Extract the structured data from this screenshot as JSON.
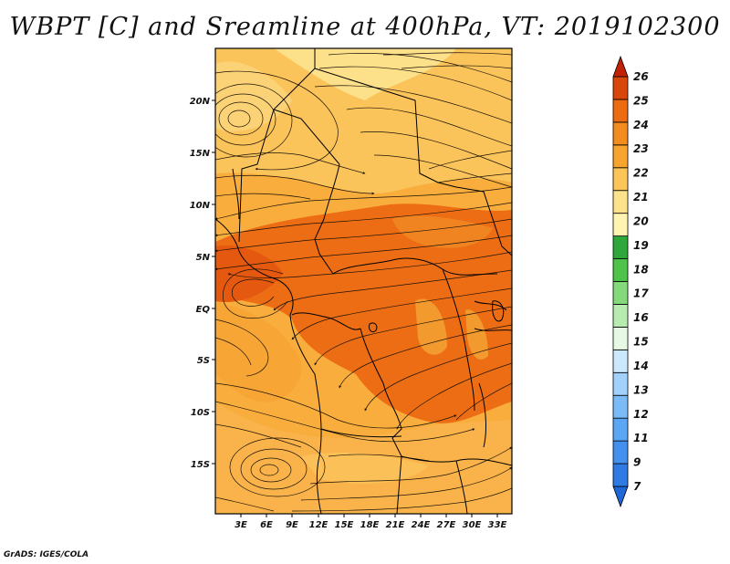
{
  "title": "WBPT [C] and Sreamline at 400hPa, VT: 2019102300",
  "footer": "GrADS: IGES/COLA",
  "lat_labels": [
    "20N",
    "15N",
    "10N",
    "5N",
    "EQ",
    "5S",
    "10S",
    "15S"
  ],
  "lon_labels": [
    "3E",
    "6E",
    "9E",
    "12E",
    "15E",
    "18E",
    "21E",
    "24E",
    "27E",
    "30E",
    "33E"
  ],
  "colorbar": {
    "labels": [
      "7",
      "9",
      "11",
      "12",
      "13",
      "14",
      "15",
      "16",
      "17",
      "18",
      "19",
      "20",
      "21",
      "22",
      "23",
      "24",
      "25",
      "26"
    ],
    "colors": [
      "#1f66d6",
      "#2f7ae3",
      "#4390ee",
      "#5ba6f5",
      "#7bbcf8",
      "#a2d2fb",
      "#cbe8fd",
      "#e7f9e4",
      "#b8ebb0",
      "#84d97b",
      "#4fc24a",
      "#2ea83b",
      "#fff5b0",
      "#fde28c",
      "#fbc55a",
      "#f8a530",
      "#f28c1f",
      "#ec6c11",
      "#d9470b",
      "#c12207"
    ]
  },
  "colors": {
    "warm_core": "#ea6a10",
    "mid_orange": "#f7a132",
    "light_orange": "#fbc158",
    "pale_yellow": "#fde38f",
    "streamline": "#1a1208",
    "border": "#000000"
  }
}
